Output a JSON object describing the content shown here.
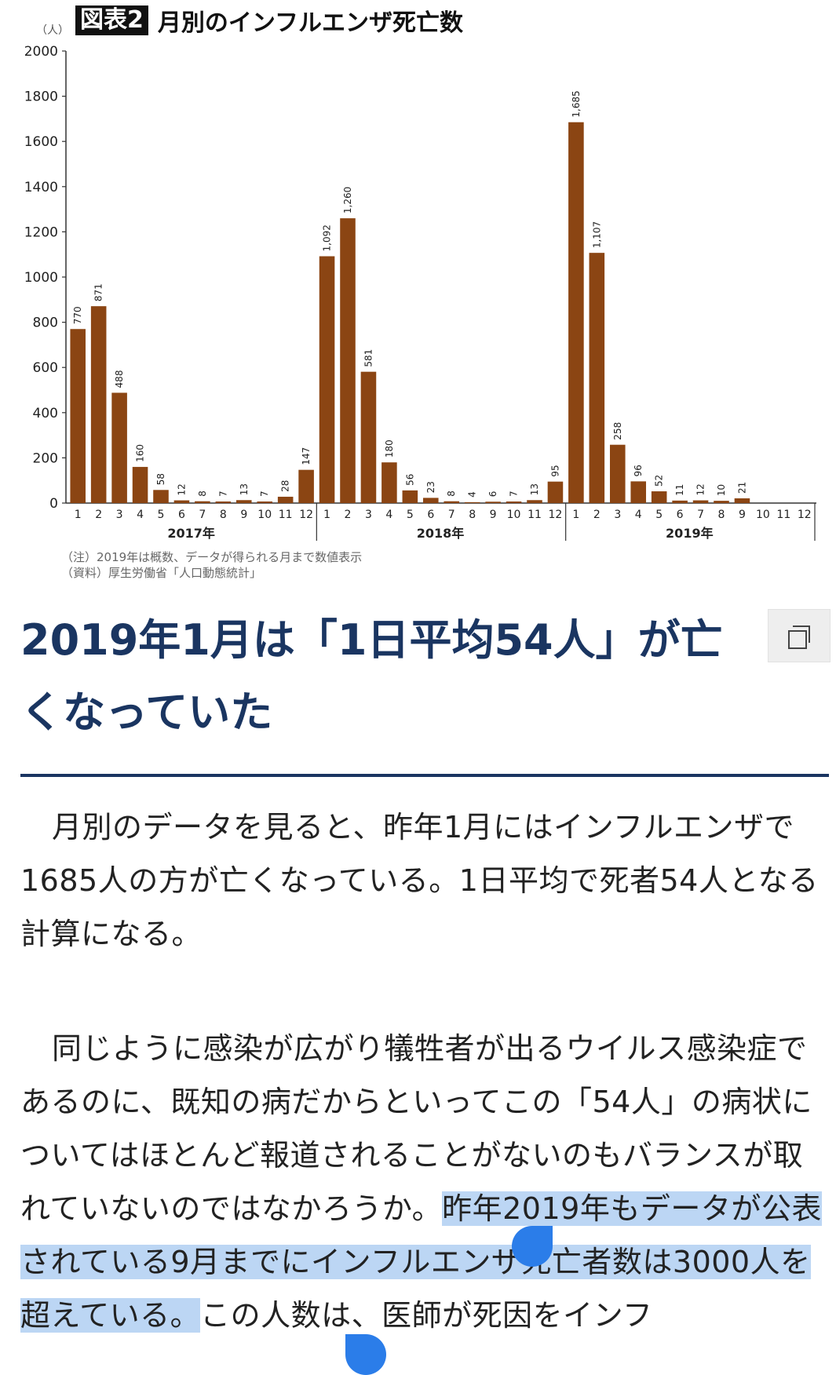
{
  "figure": {
    "badge": "図表2",
    "title": "月別のインフルエンザ死亡数",
    "unit": "（人）",
    "note1": "（注）2019年は概数、データが得られる月まで数値表示",
    "note2": "（資料）厚生労働省「人口動態統計」"
  },
  "chart_data": {
    "type": "bar",
    "ylim": [
      0,
      2000
    ],
    "yticks": [
      0,
      200,
      400,
      600,
      800,
      1000,
      1200,
      1400,
      1600,
      1800,
      2000
    ],
    "months": [
      "1",
      "2",
      "3",
      "4",
      "5",
      "6",
      "7",
      "8",
      "9",
      "10",
      "11",
      "12"
    ],
    "color": "#8b4513",
    "years": [
      {
        "year_label": "2017年",
        "values": [
          770,
          871,
          488,
          160,
          58,
          12,
          8,
          7,
          13,
          7,
          28,
          147
        ],
        "labels": [
          "770",
          "871",
          "488",
          "160",
          "58",
          "12",
          "8",
          "7",
          "13",
          "7",
          "28",
          "147"
        ]
      },
      {
        "year_label": "2018年",
        "values": [
          1092,
          1260,
          581,
          180,
          56,
          23,
          8,
          4,
          6,
          7,
          13,
          95
        ],
        "labels": [
          "1,092",
          "1,260",
          "581",
          "180",
          "56",
          "23",
          "8",
          "4",
          "6",
          "7",
          "13",
          "95"
        ]
      },
      {
        "year_label": "2019年",
        "values": [
          1685,
          1107,
          258,
          96,
          52,
          11,
          12,
          10,
          21,
          null,
          null,
          null
        ],
        "labels": [
          "1,685",
          "1,107",
          "258",
          "96",
          "52",
          "11",
          "12",
          "10",
          "21",
          "",
          "",
          ""
        ]
      }
    ]
  },
  "article": {
    "heading": "2019年1月は「1日平均54人」が亡くなっていた",
    "p1": "月別のデータを見ると、昨年1月にはインフルエンザで1685人の方が亡くなっている。1日平均で死者54人となる計算になる。",
    "p2_a": "同じように感染が広がり犠牲者が出るウイルス感染症であるのに、既知の病だからといってこの「54人」の病状についてはほとんど報道されることがないのもバランスが取れていないのではなかろうか。",
    "p2_hl": "昨年2019年もデータが公表されている9月までにインフルエンザ死亡者数は3000人を超えている。",
    "p2_b": "この人数は、医師が死因をインフ"
  }
}
